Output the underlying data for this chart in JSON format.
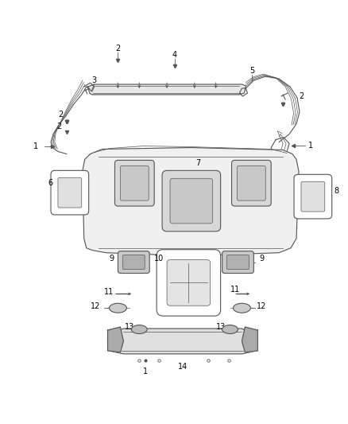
{
  "bg_color": "#ffffff",
  "line_color": "#555555",
  "label_color": "#000000",
  "fig_width": 4.38,
  "fig_height": 5.33,
  "dpi": 100,
  "label_fontsize": 7
}
